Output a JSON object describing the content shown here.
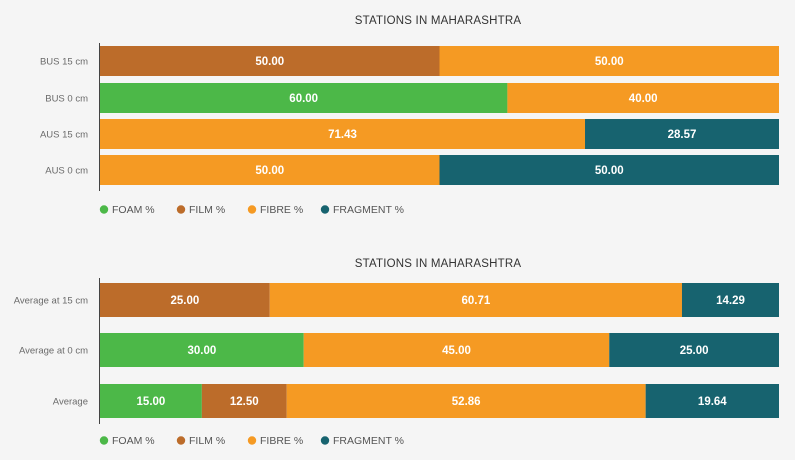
{
  "colors": {
    "FOAM": "#4cb848",
    "FILM": "#bc6c2a",
    "FIBRE": "#f59a23",
    "FRAGMENT": "#17636f"
  },
  "legend": [
    "FOAM %",
    "FILM %",
    "FIBRE %",
    "FRAGMENT %"
  ],
  "chart_data": [
    {
      "type": "bar",
      "orientation": "horizontal",
      "stacked": "100%",
      "title": "STATIONS IN MAHARASHTRA",
      "categories": [
        "BUS 15 cm",
        "BUS 0 cm",
        "AUS 15 cm",
        "AUS 0 cm"
      ],
      "series": [
        {
          "name": "FOAM %",
          "key": "FOAM",
          "values": [
            0,
            60.0,
            0,
            0
          ]
        },
        {
          "name": "FILM %",
          "key": "FILM",
          "values": [
            50.0,
            0,
            0,
            0
          ]
        },
        {
          "name": "FIBRE %",
          "key": "FIBRE",
          "values": [
            50.0,
            40.0,
            71.43,
            50.0
          ]
        },
        {
          "name": "FRAGMENT %",
          "key": "FRAGMENT",
          "values": [
            0,
            0,
            28.57,
            50.0
          ]
        }
      ],
      "xlim": [
        0,
        100
      ],
      "legend_position": "bottom-left",
      "grid": false
    },
    {
      "type": "bar",
      "orientation": "horizontal",
      "stacked": "100%",
      "title": "STATIONS IN MAHARASHTRA",
      "categories": [
        "Average at 15 cm",
        "Average at 0 cm",
        "Average"
      ],
      "series": [
        {
          "name": "FOAM %",
          "key": "FOAM",
          "values": [
            0,
            30.0,
            15.0
          ]
        },
        {
          "name": "FILM %",
          "key": "FILM",
          "values": [
            25.0,
            0,
            12.5
          ]
        },
        {
          "name": "FIBRE %",
          "key": "FIBRE",
          "values": [
            60.71,
            45.0,
            52.86
          ]
        },
        {
          "name": "FRAGMENT %",
          "key": "FRAGMENT",
          "values": [
            14.29,
            25.0,
            19.64
          ]
        }
      ],
      "xlim": [
        0,
        100
      ],
      "legend_position": "bottom-left",
      "grid": false
    }
  ]
}
